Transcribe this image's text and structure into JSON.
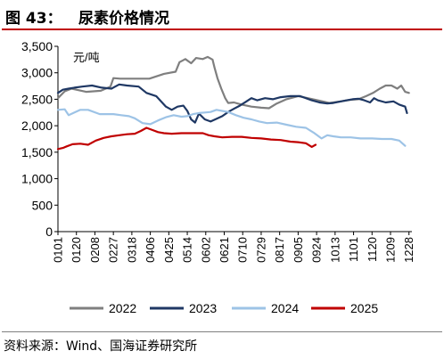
{
  "figure": {
    "number": "图 43：",
    "title": "尿素价格情况",
    "source": "资料来源：Wind、国海证券研究所"
  },
  "chart_data": {
    "type": "line",
    "unit_label": "元/吨",
    "ylim": [
      0,
      3500
    ],
    "yticks": [
      "0",
      "500",
      "1,000",
      "1,500",
      "2,000",
      "2,500",
      "3,000",
      "3,500"
    ],
    "ytick_values": [
      0,
      500,
      1000,
      1500,
      2000,
      2500,
      3000,
      3500
    ],
    "xticks": [
      "0101",
      "0120",
      "0208",
      "0227",
      "0318",
      "0406",
      "0425",
      "0514",
      "0602",
      "0621",
      "0710",
      "0729",
      "0817",
      "0905",
      "0924",
      "1013",
      "1101",
      "1120",
      "1209",
      "1228"
    ],
    "xtick_days": [
      1,
      20,
      39,
      58,
      77,
      96,
      115,
      134,
      153,
      172,
      191,
      210,
      229,
      248,
      267,
      286,
      305,
      324,
      343,
      362
    ],
    "x_unit": "day of year",
    "grid": false,
    "legend_position": "bottom",
    "series": [
      {
        "name": "2022",
        "color": "#7f7f7f",
        "points": [
          [
            1,
            2520
          ],
          [
            8,
            2650
          ],
          [
            15,
            2700
          ],
          [
            20,
            2680
          ],
          [
            30,
            2640
          ],
          [
            45,
            2660
          ],
          [
            55,
            2740
          ],
          [
            58,
            2900
          ],
          [
            65,
            2890
          ],
          [
            80,
            2890
          ],
          [
            95,
            2890
          ],
          [
            110,
            2980
          ],
          [
            122,
            3020
          ],
          [
            126,
            3200
          ],
          [
            132,
            3260
          ],
          [
            138,
            3180
          ],
          [
            143,
            3280
          ],
          [
            150,
            3260
          ],
          [
            155,
            3300
          ],
          [
            160,
            3250
          ],
          [
            162,
            3100
          ],
          [
            165,
            2900
          ],
          [
            169,
            2700
          ],
          [
            173,
            2520
          ],
          [
            176,
            2430
          ],
          [
            182,
            2440
          ],
          [
            190,
            2400
          ],
          [
            200,
            2360
          ],
          [
            210,
            2340
          ],
          [
            218,
            2330
          ],
          [
            226,
            2420
          ],
          [
            236,
            2500
          ],
          [
            248,
            2560
          ],
          [
            258,
            2520
          ],
          [
            268,
            2480
          ],
          [
            280,
            2430
          ],
          [
            292,
            2460
          ],
          [
            302,
            2490
          ],
          [
            310,
            2500
          ],
          [
            318,
            2560
          ],
          [
            325,
            2620
          ],
          [
            332,
            2700
          ],
          [
            338,
            2760
          ],
          [
            344,
            2760
          ],
          [
            350,
            2700
          ],
          [
            354,
            2760
          ],
          [
            358,
            2640
          ],
          [
            362,
            2620
          ]
        ]
      },
      {
        "name": "2023",
        "color": "#1f3864",
        "points": [
          [
            1,
            2620
          ],
          [
            6,
            2680
          ],
          [
            12,
            2700
          ],
          [
            18,
            2720
          ],
          [
            26,
            2740
          ],
          [
            36,
            2760
          ],
          [
            46,
            2720
          ],
          [
            56,
            2700
          ],
          [
            64,
            2780
          ],
          [
            72,
            2760
          ],
          [
            84,
            2740
          ],
          [
            92,
            2620
          ],
          [
            102,
            2560
          ],
          [
            112,
            2360
          ],
          [
            118,
            2300
          ],
          [
            124,
            2360
          ],
          [
            130,
            2380
          ],
          [
            134,
            2280
          ],
          [
            138,
            2120
          ],
          [
            142,
            2060
          ],
          [
            146,
            2230
          ],
          [
            152,
            2120
          ],
          [
            158,
            2080
          ],
          [
            164,
            2130
          ],
          [
            170,
            2180
          ],
          [
            176,
            2260
          ],
          [
            182,
            2320
          ],
          [
            188,
            2380
          ],
          [
            194,
            2450
          ],
          [
            200,
            2520
          ],
          [
            206,
            2480
          ],
          [
            214,
            2520
          ],
          [
            222,
            2500
          ],
          [
            230,
            2540
          ],
          [
            240,
            2560
          ],
          [
            250,
            2560
          ],
          [
            256,
            2520
          ],
          [
            262,
            2480
          ],
          [
            270,
            2440
          ],
          [
            278,
            2420
          ],
          [
            284,
            2430
          ],
          [
            292,
            2460
          ],
          [
            298,
            2480
          ],
          [
            304,
            2500
          ],
          [
            310,
            2510
          ],
          [
            316,
            2480
          ],
          [
            322,
            2440
          ],
          [
            326,
            2520
          ],
          [
            330,
            2480
          ],
          [
            338,
            2440
          ],
          [
            346,
            2460
          ],
          [
            352,
            2400
          ],
          [
            358,
            2360
          ],
          [
            360,
            2240
          ]
        ]
      },
      {
        "name": "2024",
        "color": "#9dc3e6",
        "points": [
          [
            1,
            2300
          ],
          [
            8,
            2310
          ],
          [
            12,
            2200
          ],
          [
            18,
            2250
          ],
          [
            24,
            2300
          ],
          [
            32,
            2300
          ],
          [
            44,
            2220
          ],
          [
            58,
            2220
          ],
          [
            66,
            2200
          ],
          [
            74,
            2180
          ],
          [
            80,
            2140
          ],
          [
            88,
            2050
          ],
          [
            96,
            2030
          ],
          [
            104,
            2100
          ],
          [
            112,
            2160
          ],
          [
            120,
            2200
          ],
          [
            128,
            2170
          ],
          [
            134,
            2180
          ],
          [
            140,
            2220
          ],
          [
            146,
            2240
          ],
          [
            152,
            2250
          ],
          [
            158,
            2260
          ],
          [
            164,
            2300
          ],
          [
            170,
            2280
          ],
          [
            176,
            2260
          ],
          [
            184,
            2200
          ],
          [
            192,
            2150
          ],
          [
            200,
            2120
          ],
          [
            208,
            2080
          ],
          [
            216,
            2050
          ],
          [
            226,
            2060
          ],
          [
            236,
            2020
          ],
          [
            246,
            1980
          ],
          [
            256,
            1960
          ],
          [
            264,
            1870
          ],
          [
            272,
            1760
          ],
          [
            278,
            1820
          ],
          [
            284,
            1800
          ],
          [
            292,
            1780
          ],
          [
            302,
            1780
          ],
          [
            312,
            1760
          ],
          [
            324,
            1760
          ],
          [
            334,
            1750
          ],
          [
            344,
            1750
          ],
          [
            352,
            1720
          ],
          [
            358,
            1620
          ]
        ]
      },
      {
        "name": "2025",
        "color": "#c00000",
        "points": [
          [
            1,
            1560
          ],
          [
            6,
            1580
          ],
          [
            10,
            1610
          ],
          [
            16,
            1650
          ],
          [
            24,
            1660
          ],
          [
            32,
            1640
          ],
          [
            40,
            1720
          ],
          [
            48,
            1770
          ],
          [
            56,
            1800
          ],
          [
            64,
            1820
          ],
          [
            72,
            1840
          ],
          [
            80,
            1850
          ],
          [
            86,
            1900
          ],
          [
            92,
            1960
          ],
          [
            98,
            1920
          ],
          [
            104,
            1880
          ],
          [
            110,
            1860
          ],
          [
            118,
            1850
          ],
          [
            128,
            1860
          ],
          [
            138,
            1860
          ],
          [
            150,
            1860
          ],
          [
            156,
            1820
          ],
          [
            162,
            1800
          ],
          [
            170,
            1780
          ],
          [
            180,
            1790
          ],
          [
            190,
            1790
          ],
          [
            200,
            1770
          ],
          [
            210,
            1760
          ],
          [
            220,
            1740
          ],
          [
            230,
            1730
          ],
          [
            240,
            1700
          ],
          [
            248,
            1690
          ],
          [
            256,
            1670
          ],
          [
            262,
            1600
          ],
          [
            266,
            1640
          ]
        ]
      }
    ]
  }
}
